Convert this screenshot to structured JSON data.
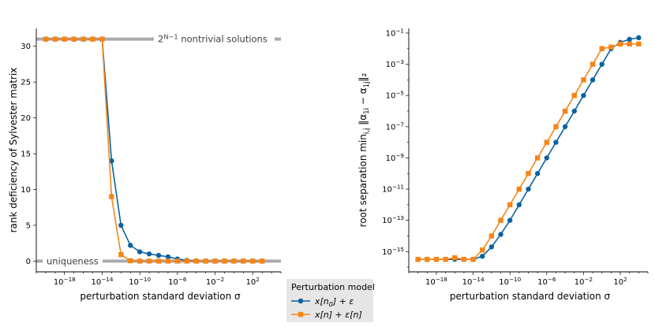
{
  "chart_data": [
    {
      "type": "line",
      "xlabel": "perturbation standard deviation σ",
      "ylabel": "rank deficiency of Sylvester matrix",
      "xscale": "log",
      "xlim_exp": [
        -21,
        5
      ],
      "ylim": [
        -1.5,
        32.5
      ],
      "x_ticks": [
        {
          "exp": -18,
          "label": "10^{-18}"
        },
        {
          "exp": -14,
          "label": "10^{-14}"
        },
        {
          "exp": -10,
          "label": "10^{-10}"
        },
        {
          "exp": -6,
          "label": "10^{-6}"
        },
        {
          "exp": -2,
          "label": "10^{-2}"
        },
        {
          "exp": 2,
          "label": "10^{2}"
        }
      ],
      "y_ticks": [
        0,
        5,
        10,
        15,
        20,
        25,
        30
      ],
      "reference_lines": [
        {
          "y": 31,
          "label": "2^{N−1} nontrivial solutions",
          "color": "#aaaaaa"
        },
        {
          "y": 0,
          "label": "uniqueness",
          "color": "#aaaaaa"
        }
      ],
      "x_exp": [
        -20,
        -19,
        -18,
        -17,
        -16,
        -15,
        -14,
        -13,
        -12,
        -11,
        -10,
        -9,
        -8,
        -7,
        -6,
        -5,
        -4,
        -3,
        -2,
        -1,
        0,
        1,
        2,
        3
      ],
      "series": [
        {
          "name": "x[n_0] + ε",
          "color": "#0a62a0",
          "marker": "circle",
          "y": [
            31,
            31,
            31,
            31,
            31,
            31,
            31,
            14,
            5,
            2.2,
            1.3,
            1.0,
            0.8,
            0.6,
            0.3,
            0.1,
            0,
            0,
            0,
            0,
            0,
            0,
            0,
            0
          ]
        },
        {
          "name": "x[n] + ε[n]",
          "color": "#f58518",
          "marker": "square",
          "y": [
            31,
            31,
            31,
            31,
            31,
            31,
            31,
            9,
            0.9,
            0.05,
            0,
            0,
            0,
            0,
            0,
            0,
            0,
            0,
            0,
            0,
            0,
            0,
            0,
            0
          ]
        }
      ]
    },
    {
      "type": "line",
      "xlabel": "perturbation standard deviation σ",
      "ylabel": "root separation min_{i,j} ‖α_{1i} − α_{1j}‖₂",
      "xscale": "log",
      "yscale": "log",
      "xlim_exp": [
        -21,
        5
      ],
      "ylim_exp": [
        -16.3,
        -0.7
      ],
      "x_ticks": [
        {
          "exp": -18,
          "label": "10^{-18}"
        },
        {
          "exp": -14,
          "label": "10^{-14}"
        },
        {
          "exp": -10,
          "label": "10^{-10}"
        },
        {
          "exp": -6,
          "label": "10^{-6}"
        },
        {
          "exp": -2,
          "label": "10^{-2}"
        },
        {
          "exp": 2,
          "label": "10^{2}"
        }
      ],
      "y_ticks": [
        {
          "exp": -15,
          "label": "10^{-15}"
        },
        {
          "exp": -13,
          "label": "10^{-13}"
        },
        {
          "exp": -11,
          "label": "10^{-11}"
        },
        {
          "exp": -9,
          "label": "10^{-9}"
        },
        {
          "exp": -7,
          "label": "10^{-7}"
        },
        {
          "exp": -5,
          "label": "10^{-5}"
        },
        {
          "exp": -3,
          "label": "10^{-3}"
        },
        {
          "exp": -1,
          "label": "10^{-1}"
        }
      ],
      "x_exp": [
        -20,
        -19,
        -18,
        -17,
        -16,
        -15,
        -14,
        -13,
        -12,
        -11,
        -10,
        -9,
        -8,
        -7,
        -6,
        -5,
        -4,
        -3,
        -2,
        -1,
        0,
        1,
        2,
        3,
        4
      ],
      "series": [
        {
          "name": "x[n_0] + ε",
          "color": "#0a62a0",
          "marker": "circle",
          "y_exp": [
            -15.5,
            -15.5,
            -15.5,
            -15.5,
            -15.5,
            -15.5,
            -15.5,
            -15.3,
            -14.7,
            -13.9,
            -13.0,
            -12.0,
            -11.0,
            -10.0,
            -9.0,
            -8.0,
            -7.0,
            -6.0,
            -5.0,
            -4.0,
            -3.0,
            -2.0,
            -1.6,
            -1.4,
            -1.3
          ]
        },
        {
          "name": "x[n] + ε[n]",
          "color": "#f58518",
          "marker": "square",
          "y_exp": [
            -15.5,
            -15.5,
            -15.5,
            -15.5,
            -15.4,
            -15.5,
            -15.5,
            -14.9,
            -14.0,
            -13.0,
            -12.0,
            -11.0,
            -10.0,
            -9.0,
            -8.0,
            -7.0,
            -6.0,
            -5.0,
            -4.0,
            -3.0,
            -2.0,
            -1.9,
            -1.7,
            -1.7,
            -1.7
          ]
        }
      ]
    }
  ],
  "legend": {
    "title": "Perturbation model",
    "entries": [
      {
        "label": "x[n_0] + ε",
        "color": "#0a62a0",
        "marker": "circle"
      },
      {
        "label": "x[n] + ε[n]",
        "color": "#f58518",
        "marker": "square"
      }
    ]
  }
}
